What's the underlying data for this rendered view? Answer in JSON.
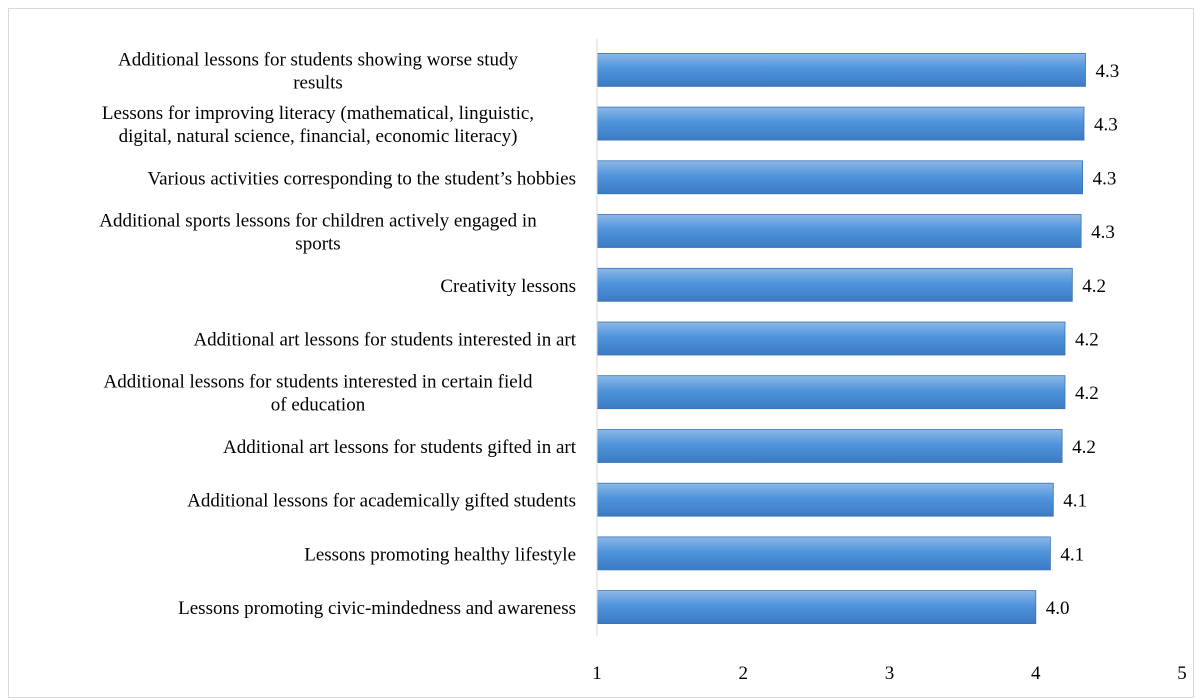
{
  "chart_data": {
    "type": "bar",
    "orientation": "horizontal",
    "categories": [
      [
        "Additional lessons for students showing worse study",
        "results"
      ],
      [
        "Lessons for improving literacy (mathematical, linguistic,",
        "digital, natural science, financial, economic literacy)"
      ],
      [
        "Various activities corresponding to the student’s hobbies"
      ],
      [
        "Additional sports lessons for children actively engaged in",
        "sports"
      ],
      [
        "Creativity lessons"
      ],
      [
        "Additional art lessons for students interested in art"
      ],
      [
        "Additional lessons for students interested in certain field",
        "of education"
      ],
      [
        "Additional art lessons for students gifted in art"
      ],
      [
        "Additional lessons for academically gifted students"
      ],
      [
        "Lessons promoting healthy lifestyle"
      ],
      [
        "Lessons promoting civic-mindedness and awareness"
      ]
    ],
    "values": [
      4.34,
      4.33,
      4.32,
      4.31,
      4.25,
      4.2,
      4.2,
      4.18,
      4.12,
      4.1,
      4.0
    ],
    "value_labels": [
      "4.3",
      "4.3",
      "4.3",
      "4.3",
      "4.2",
      "4.2",
      "4.2",
      "4.2",
      "4.1",
      "4.1",
      "4.0"
    ],
    "xlim": [
      1,
      5
    ],
    "x_ticks": [
      "1",
      "2",
      "3",
      "4",
      "5"
    ],
    "grid": false,
    "legend": "none",
    "colors": {
      "bar_top": "#8db8e6",
      "bar_mid": "#4f94dc",
      "bar_bottom": "#3b7bc4",
      "bar_edge": "#3a73b5",
      "axis": "#d9d9d9",
      "frame": "#d9d9d9",
      "text": "#000000"
    }
  }
}
